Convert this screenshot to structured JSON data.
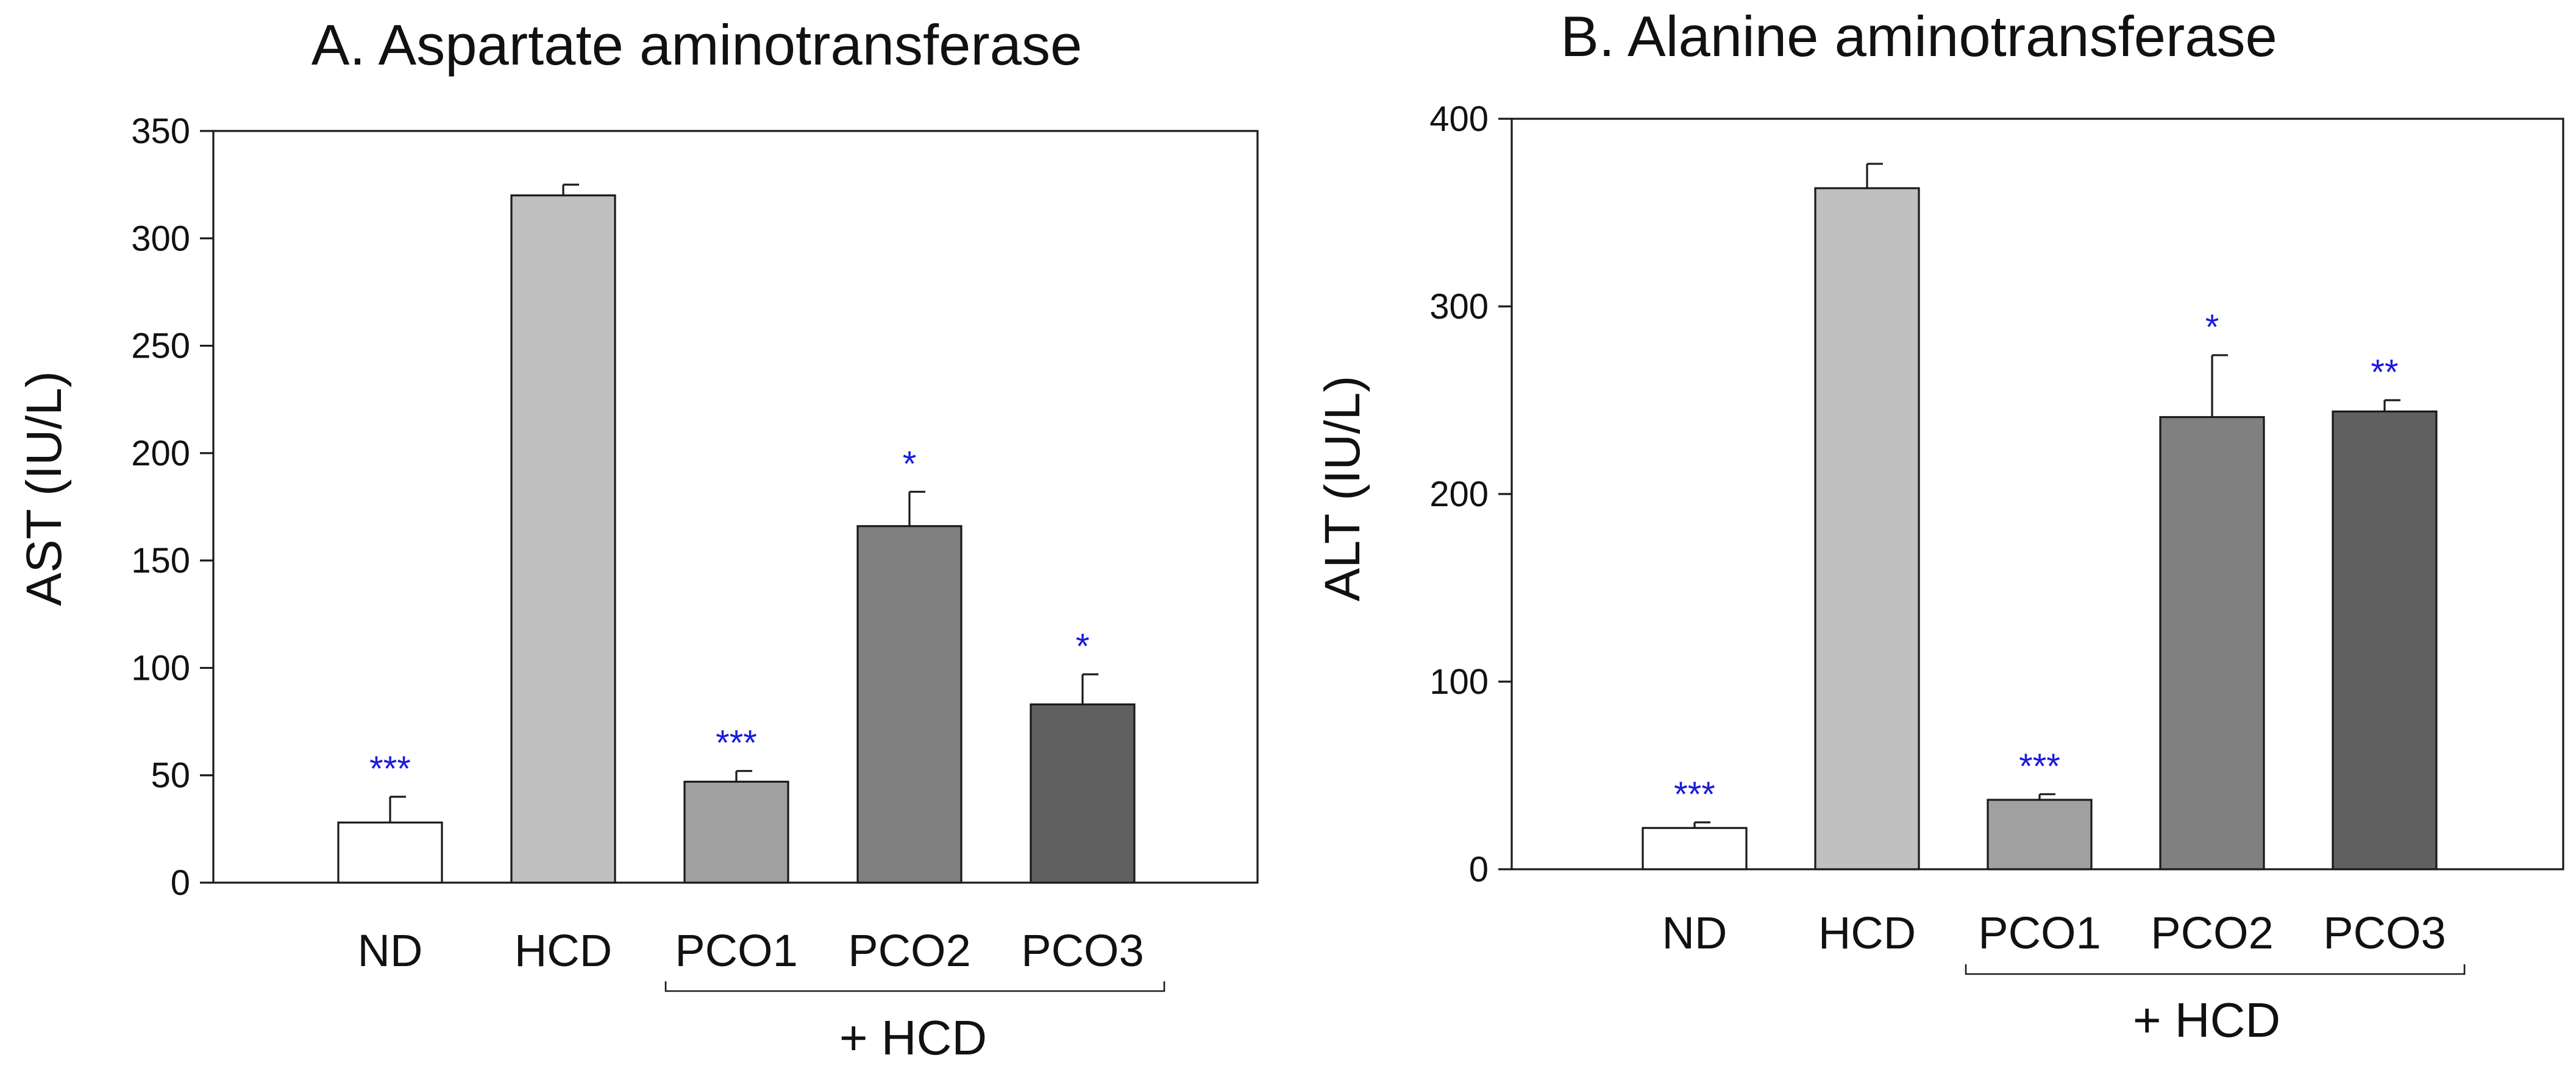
{
  "chart_data": [
    {
      "type": "bar",
      "title": "A. Aspartate aminotransferase",
      "xlabel": "",
      "ylabel": "AST (IU/L)",
      "ylim": [
        0,
        350
      ],
      "yticks": [
        0,
        50,
        100,
        150,
        200,
        250,
        300,
        350
      ],
      "categories": [
        "ND",
        "HCD",
        "PCO1",
        "PCO2",
        "PCO3"
      ],
      "values": [
        28,
        320,
        47,
        166,
        83
      ],
      "errors": [
        12,
        5,
        5,
        16,
        14
      ],
      "significance": [
        "***",
        "",
        "***",
        "*",
        "*"
      ],
      "bar_colors": [
        "#ffffff",
        "#c0c0c0",
        "#a0a0a0",
        "#808080",
        "#606060"
      ],
      "group_label": "+ HCD",
      "grid": false
    },
    {
      "type": "bar",
      "title": "B. Alanine aminotransferase",
      "xlabel": "",
      "ylabel": "ALT (IU/L)",
      "ylim": [
        0,
        400
      ],
      "yticks": [
        0,
        100,
        200,
        300,
        400
      ],
      "categories": [
        "ND",
        "HCD",
        "PCO1",
        "PCO2",
        "PCO3"
      ],
      "values": [
        22,
        363,
        37,
        241,
        244
      ],
      "errors": [
        3,
        13,
        3,
        33,
        6
      ],
      "significance": [
        "***",
        "",
        "***",
        "*",
        "**"
      ],
      "bar_colors": [
        "#ffffff",
        "#c0c0c0",
        "#a0a0a0",
        "#808080",
        "#606060"
      ],
      "group_label": "+ HCD",
      "grid": false
    }
  ]
}
